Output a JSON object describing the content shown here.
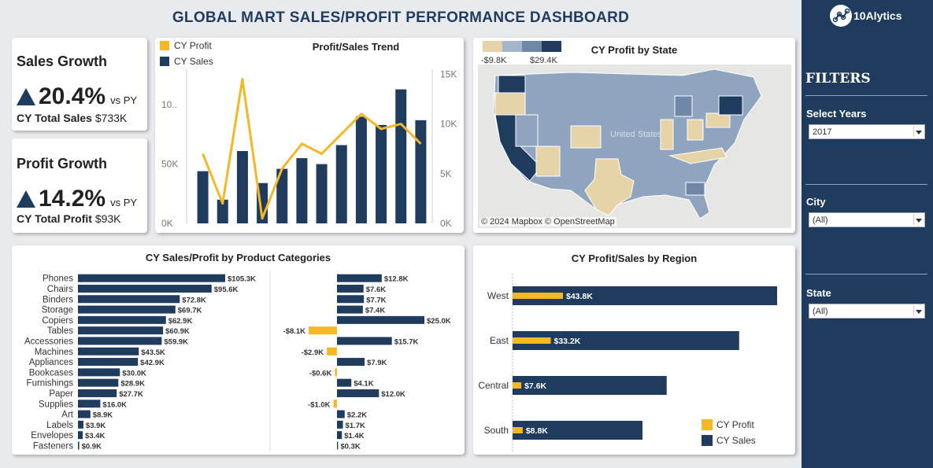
{
  "title": "GLOBAL MART SALES/PROFIT PERFORMANCE DASHBOARD",
  "colors": {
    "navy": "#1f3c5e",
    "gold": "#f6b724",
    "tan": "#e6d3a8",
    "steel": "#8fa5bf",
    "grey": "#c6d1de"
  },
  "sales_growth": {
    "title": "Sales Growth",
    "pct": "20.4%",
    "vs": "vs PY",
    "sub_label": "CY Total Sales",
    "sub_value": "$733K",
    "icon": "triangle-up-icon"
  },
  "profit_growth": {
    "title": "Profit Growth",
    "pct": "14.2%",
    "vs": "vs PY",
    "sub_label": "CY Total Profit",
    "sub_value": "$93K",
    "icon": "triangle-up-icon"
  },
  "trend": {
    "title": "Profit/Sales Trend",
    "legend_profit": "CY Profit",
    "legend_sales": "CY Sales"
  },
  "map": {
    "title": "CY Profit by State",
    "legend_min": "-$9.8K",
    "legend_max": "$29.4K",
    "attribution": "© 2024 Mapbox © OpenStreetMap",
    "watermark": "United States"
  },
  "categories": {
    "title": "CY Sales/Profit by Product Categories"
  },
  "region": {
    "title": "CY Profit/Sales by Region",
    "legend_profit": "CY Profit",
    "legend_sales": "CY Sales"
  },
  "sidebar": {
    "brand": "10Alytics",
    "filters_title": "FILTERS",
    "years_label": "Select Years",
    "years_value": "2017",
    "city_label": "City",
    "city_value": "(All)",
    "state_label": "State",
    "state_value": "(All)"
  },
  "chart_data": [
    {
      "type": "bar",
      "title": "Profit/Sales Trend",
      "months": 12,
      "series": [
        {
          "name": "CY Sales",
          "values": [
            44000,
            20000,
            61000,
            34000,
            46000,
            55000,
            50000,
            66000,
            90000,
            83000,
            113000,
            87000
          ]
        },
        {
          "name": "CY Profit",
          "values": [
            7000,
            2000,
            14500,
            500,
            5500,
            8000,
            7000,
            9000,
            11000,
            9500,
            10000,
            8000
          ]
        }
      ],
      "left_axis": {
        "ticks": [
          "0K",
          "50K",
          "10.."
        ],
        "tick_values": [
          0,
          50000,
          100000
        ],
        "max": 130000
      },
      "right_axis": {
        "ticks": [
          "0K",
          "5K",
          "10K",
          "15K"
        ],
        "tick_values": [
          0,
          5000,
          10000,
          15000
        ],
        "max": 15500
      }
    },
    {
      "type": "bar",
      "title": "CY Sales/Profit by Product Categories",
      "categories": [
        "Phones",
        "Chairs",
        "Binders",
        "Storage",
        "Copiers",
        "Tables",
        "Accessories",
        "Machines",
        "Appliances",
        "Bookcases",
        "Furnishings",
        "Paper",
        "Supplies",
        "Art",
        "Labels",
        "Envelopes",
        "Fasteners"
      ],
      "series": [
        {
          "name": "CY Sales",
          "values": [
            105.3,
            95.6,
            72.8,
            69.7,
            62.9,
            60.9,
            59.9,
            43.5,
            42.9,
            30.0,
            28.9,
            27.7,
            16.0,
            8.9,
            3.9,
            3.4,
            0.9
          ],
          "labels": [
            "$105.3K",
            "$95.6K",
            "$72.8K",
            "$69.7K",
            "$62.9K",
            "$60.9K",
            "$59.9K",
            "$43.5K",
            "$42.9K",
            "$30.0K",
            "$28.9K",
            "$27.7K",
            "$16.0K",
            "$8.9K",
            "$3.9K",
            "$3.4K",
            "$0.9K"
          ]
        },
        {
          "name": "CY Profit",
          "values": [
            12.8,
            7.6,
            7.7,
            7.4,
            25.0,
            -8.1,
            15.7,
            -2.9,
            7.9,
            -0.6,
            4.1,
            12.0,
            -1.0,
            2.2,
            1.7,
            1.4,
            0.3
          ],
          "labels": [
            "$12.8K",
            "$7.6K",
            "$7.7K",
            "$7.4K",
            "$25.0K",
            "-$8.1K",
            "$15.7K",
            "-$2.9K",
            "$7.9K",
            "-$0.6K",
            "$4.1K",
            "$12.0K",
            "-$1.0K",
            "$2.2K",
            "$1.7K",
            "$1.4K",
            "$0.3K"
          ]
        }
      ]
    },
    {
      "type": "bar",
      "title": "CY Profit/Sales by Region",
      "categories": [
        "West",
        "East",
        "Central",
        "South"
      ],
      "series": [
        {
          "name": "CY Sales",
          "values": [
            230,
            197,
            134,
            113
          ]
        },
        {
          "name": "CY Profit",
          "values": [
            43.8,
            33.2,
            7.6,
            8.8
          ],
          "labels": [
            "$43.8K",
            "$33.2K",
            "$7.6K",
            "$8.8K"
          ]
        }
      ]
    }
  ]
}
